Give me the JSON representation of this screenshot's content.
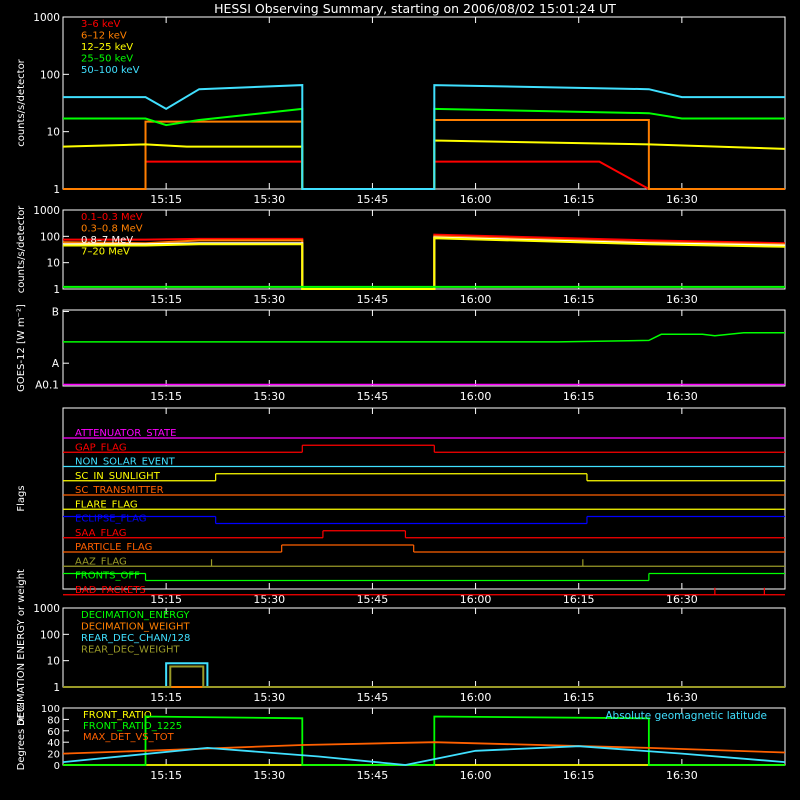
{
  "title": "HESSI Observing Summary, starting on 2006/08/02 15:01:24 UT",
  "time_ticks": [
    "15:15",
    "15:30",
    "15:45",
    "16:00",
    "16:15",
    "16:30"
  ],
  "colors": {
    "red": "#ff0000",
    "orange": "#ff7f00",
    "yellow": "#ffff00",
    "green": "#00ff00",
    "cyan": "#40e0ff",
    "magenta": "#ff00ff",
    "blue": "#0000ff",
    "olive": "#9a9a28",
    "dark_orange": "#ff6000",
    "white": "#ffffff"
  },
  "chart_data": [
    {
      "id": "low_energy_rates",
      "type": "line",
      "ylabel": "counts/s/detector",
      "yscale": "log",
      "ylim": [
        1,
        1000
      ],
      "ytick_labels": [
        "1",
        "10",
        "100",
        "1000"
      ],
      "legend_placement": "top-left",
      "series": [
        {
          "name": "3–6 keV",
          "color": "#ff0000",
          "points": [
            [
              15.0,
              1
            ],
            [
              15.2,
              1
            ],
            [
              15.2,
              3
            ],
            [
              15.33,
              3
            ],
            [
              15.58,
              3
            ],
            [
              15.58,
              1
            ],
            [
              15.9,
              1
            ],
            [
              15.9,
              3
            ],
            [
              16.3,
              3
            ],
            [
              16.42,
              1
            ],
            [
              16.75,
              1
            ]
          ]
        },
        {
          "name": "6–12 keV",
          "color": "#ff7f00",
          "points": [
            [
              15.0,
              1
            ],
            [
              15.2,
              1
            ],
            [
              15.2,
              15
            ],
            [
              15.58,
              15
            ],
            [
              15.58,
              1
            ],
            [
              15.9,
              1
            ],
            [
              15.9,
              16
            ],
            [
              16.42,
              16
            ],
            [
              16.42,
              1
            ],
            [
              16.75,
              1
            ]
          ]
        },
        {
          "name": "12–25 keV",
          "color": "#ffff00",
          "points": [
            [
              15.0,
              5.5
            ],
            [
              15.2,
              6
            ],
            [
              15.3,
              5.5
            ],
            [
              15.58,
              5.5
            ],
            [
              15.58,
              1
            ],
            [
              15.9,
              1
            ],
            [
              15.9,
              7
            ],
            [
              16.42,
              6
            ],
            [
              16.75,
              5
            ]
          ]
        },
        {
          "name": "25–50 keV",
          "color": "#00ff00",
          "points": [
            [
              15.0,
              17
            ],
            [
              15.2,
              17
            ],
            [
              15.25,
              13
            ],
            [
              15.33,
              16
            ],
            [
              15.58,
              25
            ],
            [
              15.58,
              1
            ],
            [
              15.9,
              1
            ],
            [
              15.9,
              25
            ],
            [
              16.42,
              21
            ],
            [
              16.5,
              17
            ],
            [
              16.75,
              17
            ]
          ]
        },
        {
          "name": "50–100 keV",
          "color": "#40e0ff",
          "points": [
            [
              15.0,
              40
            ],
            [
              15.2,
              40
            ],
            [
              15.25,
              25
            ],
            [
              15.33,
              55
            ],
            [
              15.58,
              65
            ],
            [
              15.58,
              1
            ],
            [
              15.9,
              1
            ],
            [
              15.9,
              65
            ],
            [
              16.42,
              55
            ],
            [
              16.5,
              40
            ],
            [
              16.75,
              40
            ]
          ]
        }
      ]
    },
    {
      "id": "high_energy_rates",
      "type": "line",
      "ylabel": "counts/s/detector",
      "yscale": "log",
      "ylim": [
        1,
        1000
      ],
      "ytick_labels": [
        "1",
        "10",
        "100",
        "1000"
      ],
      "legend_placement": "top-left",
      "series": [
        {
          "name": "0.1–0.3 MeV",
          "color": "#ff0000",
          "points": [
            [
              15.0,
              75
            ],
            [
              15.2,
              75
            ],
            [
              15.33,
              80
            ],
            [
              15.58,
              80
            ],
            [
              15.58,
              1
            ],
            [
              15.9,
              1
            ],
            [
              15.9,
              115
            ],
            [
              16.42,
              70
            ],
            [
              16.75,
              55
            ]
          ]
        },
        {
          "name": "0.3–0.8 MeV",
          "color": "#ff7f00",
          "points": [
            [
              15.0,
              60
            ],
            [
              15.2,
              55
            ],
            [
              15.33,
              70
            ],
            [
              15.58,
              70
            ],
            [
              15.58,
              1
            ],
            [
              15.9,
              1
            ],
            [
              15.9,
              100
            ],
            [
              16.42,
              60
            ],
            [
              16.75,
              50
            ]
          ]
        },
        {
          "name": "0.8–7 MeV",
          "color": "#ffffff",
          "points": [
            [
              15.0,
              50
            ],
            [
              15.2,
              50
            ],
            [
              15.33,
              55
            ],
            [
              15.58,
              55
            ],
            [
              15.58,
              1
            ],
            [
              15.9,
              1
            ],
            [
              15.9,
              90
            ],
            [
              16.42,
              55
            ],
            [
              16.75,
              45
            ]
          ]
        },
        {
          "name": "7–20 MeV",
          "color": "#ffff00",
          "points": [
            [
              15.0,
              45
            ],
            [
              15.2,
              45
            ],
            [
              15.33,
              50
            ],
            [
              15.58,
              50
            ],
            [
              15.58,
              1
            ],
            [
              15.9,
              1
            ],
            [
              15.9,
              85
            ],
            [
              16.42,
              50
            ],
            [
              16.75,
              40
            ]
          ]
        },
        {
          "name": "",
          "color": "#00ff00",
          "points": [
            [
              15.0,
              1.2
            ],
            [
              15.58,
              1.2
            ],
            [
              15.9,
              1.2
            ],
            [
              16.75,
              1.2
            ]
          ]
        }
      ]
    },
    {
      "id": "goes_flux",
      "type": "line",
      "ylabel": "GOES-12 [W m⁻²]",
      "ytick_labels": [
        "A0.1",
        "A",
        "B"
      ],
      "series": [
        {
          "name": "",
          "color": "#00ff00",
          "points": [
            [
              15.0,
              0.58
            ],
            [
              16.2,
              0.58
            ],
            [
              16.42,
              0.6
            ],
            [
              16.45,
              0.68
            ],
            [
              16.55,
              0.68
            ],
            [
              16.58,
              0.66
            ],
            [
              16.65,
              0.7
            ],
            [
              16.75,
              0.7
            ]
          ]
        },
        {
          "name": "",
          "color": "#ff00ff",
          "points": [
            [
              15.0,
              0.02
            ],
            [
              16.75,
              0.02
            ]
          ]
        }
      ]
    },
    {
      "id": "flags",
      "type": "line",
      "ylabel": "Flags",
      "flags": [
        {
          "name": "ATTENUATOR_STATE",
          "color": "#ff00ff",
          "segments": [
            [
              15.0,
              16.75,
              0
            ]
          ]
        },
        {
          "name": "GAP_FLAG",
          "color": "#ff0000",
          "segments": [
            [
              15.0,
              15.58,
              0
            ],
            [
              15.58,
              15.9,
              1
            ],
            [
              15.9,
              16.75,
              0
            ]
          ]
        },
        {
          "name": "NON_SOLAR_EVENT",
          "color": "#40e0ff",
          "segments": [
            [
              15.0,
              16.75,
              0
            ]
          ]
        },
        {
          "name": "SC_IN_SUNLIGHT",
          "color": "#ffff00",
          "segments": [
            [
              15.0,
              15.37,
              0
            ],
            [
              15.37,
              16.27,
              1
            ],
            [
              16.27,
              16.75,
              0
            ]
          ]
        },
        {
          "name": "SC_TRANSMITTER",
          "color": "#ff6000",
          "segments": [
            [
              15.0,
              16.75,
              0
            ]
          ]
        },
        {
          "name": "FLARE_FLAG",
          "color": "#ffff00",
          "segments": [
            [
              15.0,
              16.75,
              0
            ]
          ]
        },
        {
          "name": "ECLIPSE_FLAG",
          "color": "#0000ff",
          "segments": [
            [
              15.0,
              15.37,
              1
            ],
            [
              15.37,
              16.27,
              0
            ],
            [
              16.27,
              16.75,
              1
            ]
          ]
        },
        {
          "name": "SAA_FLAG",
          "color": "#ff0000",
          "segments": [
            [
              15.0,
              15.63,
              0
            ],
            [
              15.63,
              15.83,
              1
            ],
            [
              15.83,
              16.75,
              0
            ]
          ]
        },
        {
          "name": "PARTICLE_FLAG",
          "color": "#ff6000",
          "segments": [
            [
              15.0,
              15.53,
              0
            ],
            [
              15.53,
              15.85,
              1
            ],
            [
              15.85,
              16.75,
              0
            ]
          ]
        },
        {
          "name": "AAZ_FLAG",
          "color": "#9a9a28",
          "segments": [
            [
              15.0,
              16.75,
              0
            ]
          ],
          "spikes": [
            15.36,
            16.26
          ]
        },
        {
          "name": "FRONTS_OFF",
          "color": "#00ff00",
          "segments": [
            [
              15.0,
              15.2,
              1
            ],
            [
              15.2,
              16.42,
              0
            ],
            [
              16.42,
              16.75,
              1
            ]
          ]
        },
        {
          "name": "BAD_PACKETS",
          "color": "#ff0000",
          "segments": [
            [
              15.0,
              16.75,
              0
            ]
          ],
          "spikes": [
            16.58,
            16.7
          ]
        }
      ]
    },
    {
      "id": "decimation",
      "type": "line",
      "ylabel": "DECIMATION ENERGY or weight",
      "yscale": "log",
      "ylim": [
        1,
        1000
      ],
      "ytick_labels": [
        "1",
        "10",
        "100",
        "1000"
      ],
      "series": [
        {
          "name": "DECIMATION_ENERGY",
          "color": "#00ff00",
          "points": [
            [
              15.0,
              1
            ],
            [
              16.75,
              1
            ]
          ]
        },
        {
          "name": "DECIMATION_WEIGHT",
          "color": "#ff7f00",
          "points": [
            [
              15.0,
              1
            ],
            [
              16.75,
              1
            ]
          ]
        },
        {
          "name": "REAR_DEC_CHAN/128",
          "color": "#40e0ff",
          "points": [
            [
              15.0,
              1
            ],
            [
              15.25,
              1
            ],
            [
              15.25,
              8
            ],
            [
              15.35,
              8
            ],
            [
              15.35,
              1
            ],
            [
              16.75,
              1
            ]
          ]
        },
        {
          "name": "REAR_DEC_WEIGHT",
          "color": "#9a9a28",
          "points": [
            [
              15.0,
              1
            ],
            [
              15.26,
              1
            ],
            [
              15.26,
              6
            ],
            [
              15.34,
              6
            ],
            [
              15.34,
              1
            ],
            [
              16.75,
              1
            ]
          ]
        }
      ]
    },
    {
      "id": "ratios",
      "type": "line",
      "ylabel": "Degrees or %",
      "ylim": [
        0,
        100
      ],
      "ytick_labels": [
        "0",
        "20",
        "40",
        "60",
        "80",
        "100"
      ],
      "annotation": "Absolute geomagnetic latitude",
      "series": [
        {
          "name": "FRONT_RATIO",
          "color": "#ffff00",
          "points": [
            [
              15.0,
              0
            ],
            [
              16.75,
              0
            ]
          ]
        },
        {
          "name": "FRONT_RATIO_1225",
          "color": "#00ff00",
          "points": [
            [
              15.0,
              0
            ],
            [
              15.2,
              0
            ],
            [
              15.2,
              85
            ],
            [
              15.58,
              82
            ],
            [
              15.58,
              0
            ],
            [
              15.9,
              0
            ],
            [
              15.9,
              85
            ],
            [
              16.42,
              82
            ],
            [
              16.42,
              0
            ],
            [
              16.75,
              0
            ]
          ]
        },
        {
          "name": "MAX_DET_VS_TOT",
          "color": "#ff6000",
          "points": [
            [
              15.0,
              20
            ],
            [
              15.2,
              25
            ],
            [
              15.58,
              35
            ],
            [
              15.9,
              40
            ],
            [
              16.42,
              30
            ],
            [
              16.75,
              22
            ]
          ]
        },
        {
          "name": "",
          "color": "#40e0ff",
          "points": [
            [
              15.0,
              5
            ],
            [
              15.35,
              30
            ],
            [
              15.62,
              15
            ],
            [
              15.83,
              0
            ],
            [
              16.0,
              25
            ],
            [
              16.25,
              33
            ],
            [
              16.5,
              20
            ],
            [
              16.75,
              5
            ]
          ]
        }
      ]
    }
  ]
}
